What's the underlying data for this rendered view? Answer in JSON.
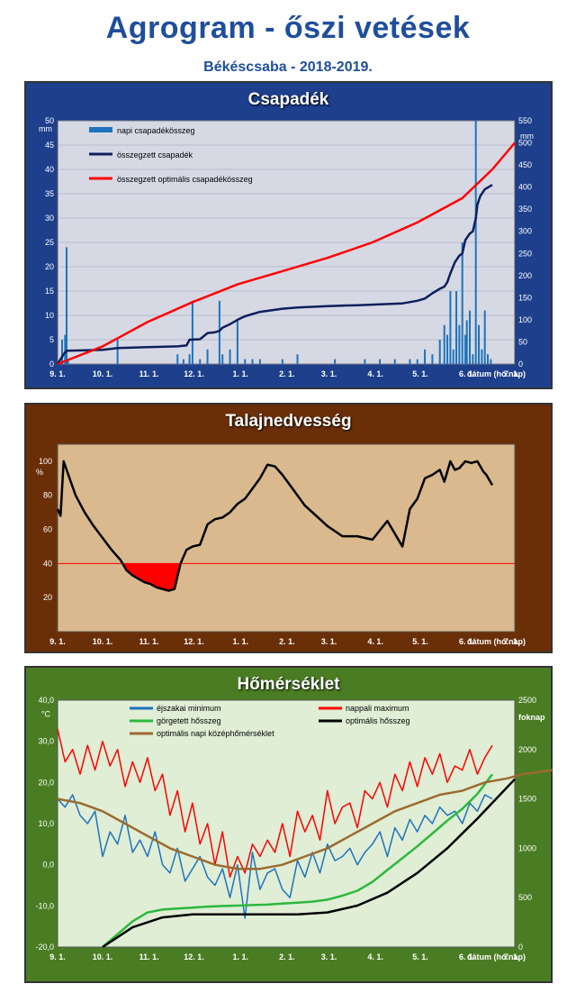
{
  "header": {
    "title": "Agrogram - őszi vetések",
    "subtitle": "Békéscsaba - 2018-2019."
  },
  "x_ticks": [
    "9. 1.",
    "10. 1.",
    "11. 1.",
    "12. 1.",
    "1. 1.",
    "2. 1.",
    "3. 1.",
    "4. 1.",
    "5. 1.",
    "6. 1.",
    "7. 1."
  ],
  "x_label": "dátum (hó.nap)",
  "colors": {
    "precip_bar": "#1e73be",
    "cum_precip": "#0d1f5c",
    "optimal_precip": "#ff0000",
    "soil_line": "#000000",
    "soil_deficit": "#ff0000",
    "night_min": "#1e73be",
    "day_max": "#ff0000",
    "rolling_heat": "#2db83d",
    "optimal_heat": "#000000",
    "optimal_mean": "#9c6a2e"
  },
  "chart_data": [
    {
      "type": "bar+line",
      "title": "Csapadék",
      "ylabel_left": "mm",
      "ylabel_right": "mm",
      "ylim_left": [
        0,
        50
      ],
      "ylim_right": [
        0,
        550
      ],
      "yticks_left": [
        "0",
        "5",
        "10",
        "15",
        "20",
        "25",
        "30",
        "35",
        "40",
        "45",
        "50"
      ],
      "yticks_right": [
        "0",
        "50",
        "100",
        "150",
        "200",
        "250",
        "300",
        "350",
        "400",
        "450",
        "500",
        "550"
      ],
      "xlim_days": [
        0,
        305
      ],
      "series": [
        {
          "name": "napi csapadékösszeg",
          "kind": "bar",
          "axis": "left",
          "x": [
            3,
            5,
            6,
            7,
            40,
            80,
            84,
            88,
            90,
            95,
            100,
            108,
            110,
            115,
            120,
            125,
            130,
            135,
            150,
            160,
            185,
            205,
            215,
            225,
            235,
            240,
            245,
            250,
            255,
            258,
            260,
            262,
            264,
            266,
            268,
            270,
            272,
            273,
            275,
            277,
            279,
            281,
            283,
            285,
            287,
            289
          ],
          "values": [
            5,
            6,
            24,
            1,
            5,
            2,
            1,
            2,
            13,
            1,
            3,
            13,
            2,
            3,
            9,
            1,
            1,
            1,
            1,
            2,
            1,
            1,
            1,
            1,
            1,
            1,
            3,
            2,
            5,
            8,
            6,
            15,
            3,
            15,
            8,
            25,
            6,
            9,
            11,
            2,
            50,
            8,
            3,
            11,
            2,
            1
          ]
        },
        {
          "name": "összegzett csapadék",
          "kind": "line",
          "axis": "right",
          "x": [
            0,
            4,
            6,
            30,
            40,
            60,
            80,
            86,
            88,
            95,
            100,
            105,
            108,
            110,
            115,
            120,
            125,
            135,
            150,
            160,
            180,
            200,
            230,
            240,
            245,
            250,
            255,
            258,
            260,
            262,
            265,
            268,
            270,
            272,
            275,
            277,
            279,
            280,
            282,
            285,
            290
          ],
          "values": [
            0,
            22,
            30,
            32,
            36,
            38,
            40,
            42,
            55,
            56,
            70,
            72,
            75,
            82,
            90,
            100,
            108,
            118,
            125,
            128,
            131,
            133,
            137,
            143,
            148,
            160,
            170,
            175,
            185,
            205,
            230,
            245,
            250,
            280,
            295,
            300,
            330,
            360,
            380,
            395,
            405
          ]
        },
        {
          "name": "összegzett optimális csapadékösszeg",
          "kind": "line",
          "axis": "right",
          "x": [
            0,
            30,
            60,
            90,
            120,
            150,
            180,
            210,
            240,
            270,
            290,
            305
          ],
          "values": [
            0,
            40,
            95,
            140,
            180,
            210,
            240,
            275,
            320,
            375,
            440,
            500
          ]
        }
      ]
    },
    {
      "type": "line",
      "title": "Talajnedvesség",
      "ylabel": "%",
      "ylim": [
        0,
        110
      ],
      "yticks": [
        "20",
        "40",
        "60",
        "80",
        "100"
      ],
      "threshold": 40,
      "xlim_days": [
        0,
        305
      ],
      "series": [
        {
          "name": "",
          "x": [
            0,
            2,
            4,
            6,
            8,
            12,
            18,
            24,
            30,
            36,
            42,
            46,
            50,
            54,
            58,
            62,
            66,
            70,
            74,
            78,
            82,
            86,
            88,
            90,
            95,
            100,
            105,
            110,
            115,
            118,
            120,
            125,
            130,
            135,
            140,
            145,
            150,
            155,
            160,
            165,
            170,
            175,
            180,
            190,
            200,
            210,
            220,
            230,
            235,
            240,
            245,
            250,
            255,
            258,
            262,
            265,
            268,
            272,
            276,
            280,
            284,
            286,
            290
          ],
          "values": [
            72,
            68,
            100,
            95,
            90,
            80,
            70,
            62,
            55,
            48,
            42,
            36,
            33,
            31,
            29,
            28,
            26,
            25,
            24,
            25,
            40,
            48,
            49,
            50,
            51,
            63,
            66,
            67,
            70,
            73,
            75,
            78,
            84,
            90,
            98,
            97,
            92,
            86,
            80,
            74,
            70,
            66,
            62,
            56,
            56,
            54,
            65,
            50,
            72,
            78,
            90,
            92,
            95,
            88,
            100,
            95,
            96,
            100,
            99,
            100,
            94,
            92,
            86
          ]
        }
      ]
    },
    {
      "type": "line",
      "title": "Hőmérséklet",
      "ylabel_left": "°C",
      "ylabel_right": "foknap",
      "ylim_left": [
        -20,
        40
      ],
      "ylim_right": [
        0,
        2500
      ],
      "yticks_left": [
        "-20,0",
        "-10,0",
        "0,0",
        "10,0",
        "20,0",
        "30,0",
        "40,0"
      ],
      "yticks_right": [
        "0",
        "500",
        "1000",
        "1500",
        "2000",
        "2500"
      ],
      "xlim_days": [
        0,
        305
      ],
      "series": [
        {
          "name": "éjszakai minimum",
          "axis": "left",
          "x": [
            0,
            5,
            10,
            15,
            20,
            25,
            30,
            35,
            40,
            45,
            50,
            55,
            60,
            65,
            70,
            75,
            80,
            85,
            90,
            95,
            100,
            105,
            110,
            115,
            120,
            125,
            130,
            135,
            140,
            145,
            150,
            155,
            160,
            165,
            170,
            175,
            180,
            185,
            190,
            195,
            200,
            205,
            210,
            215,
            220,
            225,
            230,
            235,
            240,
            245,
            250,
            255,
            260,
            265,
            270,
            275,
            280,
            285,
            290
          ],
          "values": [
            16,
            14,
            17,
            12,
            10,
            13,
            2,
            8,
            5,
            12,
            3,
            6,
            2,
            8,
            0,
            -2,
            4,
            -4,
            -1,
            2,
            -3,
            -5,
            -1,
            -8,
            0,
            -13,
            3,
            -6,
            -2,
            -1,
            -6,
            -8,
            1,
            -3,
            3,
            -2,
            5,
            1,
            2,
            4,
            0,
            3,
            5,
            8,
            2,
            9,
            6,
            11,
            8,
            12,
            10,
            14,
            12,
            13,
            10,
            15,
            13,
            17,
            16
          ]
        },
        {
          "name": "nappali maximum",
          "axis": "left",
          "x": [
            0,
            5,
            10,
            15,
            20,
            25,
            30,
            35,
            40,
            45,
            50,
            55,
            60,
            65,
            70,
            75,
            80,
            85,
            90,
            95,
            100,
            105,
            110,
            115,
            120,
            125,
            130,
            135,
            140,
            145,
            150,
            155,
            160,
            165,
            170,
            175,
            180,
            185,
            190,
            195,
            200,
            205,
            210,
            215,
            220,
            225,
            230,
            235,
            240,
            245,
            250,
            255,
            260,
            265,
            270,
            275,
            280,
            285,
            290
          ],
          "values": [
            33,
            25,
            28,
            22,
            29,
            23,
            30,
            24,
            28,
            19,
            25,
            20,
            26,
            18,
            22,
            12,
            18,
            8,
            15,
            5,
            10,
            0,
            8,
            -3,
            2,
            -2,
            5,
            2,
            6,
            3,
            10,
            2,
            13,
            8,
            12,
            6,
            18,
            10,
            14,
            15,
            9,
            18,
            16,
            20,
            14,
            22,
            18,
            25,
            19,
            26,
            22,
            27,
            20,
            24,
            23,
            28,
            22,
            26,
            29
          ]
        },
        {
          "name": "görgetett hősszeg",
          "axis": "right",
          "x": [
            30,
            40,
            50,
            60,
            70,
            80,
            90,
            100,
            110,
            120,
            130,
            140,
            150,
            160,
            170,
            180,
            190,
            200,
            210,
            220,
            230,
            240,
            250,
            260,
            270,
            280,
            290
          ],
          "values": [
            0,
            130,
            260,
            350,
            380,
            390,
            400,
            410,
            415,
            420,
            425,
            430,
            440,
            450,
            460,
            480,
            520,
            570,
            660,
            780,
            900,
            1020,
            1150,
            1280,
            1400,
            1550,
            1750
          ]
        },
        {
          "name": "optimális hősszeg",
          "axis": "right",
          "x": [
            30,
            50,
            70,
            90,
            100,
            120,
            140,
            160,
            180,
            200,
            220,
            240,
            260,
            280,
            305
          ],
          "values": [
            0,
            200,
            300,
            330,
            330,
            330,
            330,
            330,
            350,
            420,
            550,
            750,
            1000,
            1300,
            1700
          ]
        },
        {
          "name": "optimális napi középhőmérséklet",
          "axis": "left",
          "x": [
            0,
            15,
            30,
            45,
            60,
            75,
            90,
            105,
            120,
            135,
            150,
            165,
            180,
            195,
            210,
            225,
            240,
            255,
            270,
            285,
            300,
            310,
            330
          ],
          "values": [
            16,
            15,
            13,
            10,
            7,
            4,
            2,
            0,
            -1,
            -1,
            0,
            2,
            4,
            7,
            10,
            13,
            15,
            17,
            18,
            20,
            21,
            22,
            23
          ]
        }
      ]
    }
  ]
}
